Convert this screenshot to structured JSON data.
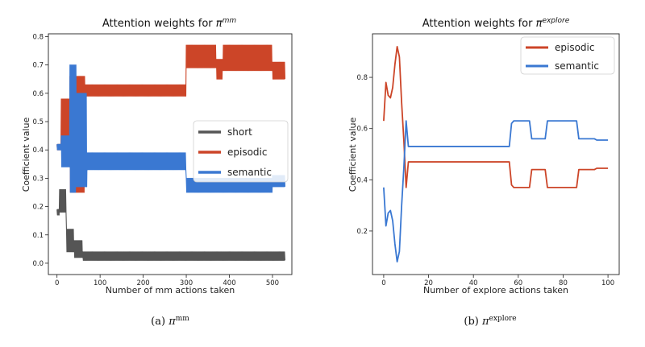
{
  "charts": [
    {
      "id": "a",
      "title_prefix": "Attention weights for ",
      "title_sym": "π",
      "title_sup": "mm",
      "xlabel": "Number of mm actions taken",
      "ylabel": "Coefficient value",
      "caption_prefix": "(a) ",
      "caption_sym": "π",
      "caption_sup": "mm"
    },
    {
      "id": "b",
      "title_prefix": "Attention weights for ",
      "title_sym": "π",
      "title_sup": "explore",
      "xlabel": "Number of explore actions taken",
      "ylabel": "Coefficient value",
      "caption_prefix": "(b) ",
      "caption_sym": "π",
      "caption_sup": "explore"
    }
  ],
  "chart_data": [
    {
      "type": "line",
      "xlim": [
        -20,
        545
      ],
      "ylim": [
        -0.04,
        0.81
      ],
      "xticks": [
        0,
        100,
        200,
        300,
        400,
        500
      ],
      "yticks": [
        0.0,
        0.1,
        0.2,
        0.3,
        0.4,
        0.5,
        0.6,
        0.7,
        0.8
      ],
      "ytick_labels": [
        "0.0",
        "0.1",
        "0.2",
        "0.3",
        "0.4",
        "0.5",
        "0.6",
        "0.7",
        "0.8"
      ],
      "legend_position": "center-right",
      "series": [
        {
          "name": "short",
          "color": "#555555",
          "segments": [
            {
              "x0": 0,
              "x1": 6,
              "lo": 0.17,
              "hi": 0.19
            },
            {
              "x0": 6,
              "x1": 22,
              "lo": 0.18,
              "hi": 0.26
            },
            {
              "x0": 22,
              "x1": 40,
              "lo": 0.04,
              "hi": 0.12
            },
            {
              "x0": 40,
              "x1": 60,
              "lo": 0.02,
              "hi": 0.08
            },
            {
              "x0": 60,
              "x1": 530,
              "lo": 0.01,
              "hi": 0.04
            }
          ]
        },
        {
          "name": "episodic",
          "color": "#cc4528",
          "segments": [
            {
              "x0": 0,
              "x1": 10,
              "lo": 0.4,
              "hi": 0.42
            },
            {
              "x0": 10,
              "x1": 30,
              "lo": 0.4,
              "hi": 0.58
            },
            {
              "x0": 30,
              "x1": 65,
              "lo": 0.25,
              "hi": 0.66
            },
            {
              "x0": 65,
              "x1": 300,
              "lo": 0.59,
              "hi": 0.63
            },
            {
              "x0": 300,
              "x1": 370,
              "lo": 0.69,
              "hi": 0.77
            },
            {
              "x0": 370,
              "x1": 385,
              "lo": 0.65,
              "hi": 0.72
            },
            {
              "x0": 385,
              "x1": 500,
              "lo": 0.68,
              "hi": 0.77
            },
            {
              "x0": 500,
              "x1": 530,
              "lo": 0.65,
              "hi": 0.71
            }
          ]
        },
        {
          "name": "semantic",
          "color": "#3a78d2",
          "segments": [
            {
              "x0": 0,
              "x1": 10,
              "lo": 0.4,
              "hi": 0.42
            },
            {
              "x0": 10,
              "x1": 30,
              "lo": 0.34,
              "hi": 0.45
            },
            {
              "x0": 30,
              "x1": 45,
              "lo": 0.25,
              "hi": 0.7
            },
            {
              "x0": 45,
              "x1": 70,
              "lo": 0.27,
              "hi": 0.6
            },
            {
              "x0": 70,
              "x1": 300,
              "lo": 0.33,
              "hi": 0.39
            },
            {
              "x0": 300,
              "x1": 500,
              "lo": 0.25,
              "hi": 0.3
            },
            {
              "x0": 500,
              "x1": 530,
              "lo": 0.27,
              "hi": 0.31
            }
          ]
        }
      ]
    },
    {
      "type": "line",
      "xlim": [
        -5,
        105
      ],
      "ylim": [
        0.03,
        0.97
      ],
      "xticks": [
        0,
        20,
        40,
        60,
        80,
        100
      ],
      "yticks": [
        0.2,
        0.4,
        0.6,
        0.8
      ],
      "ytick_labels": [
        "0.2",
        "0.4",
        "0.6",
        "0.8"
      ],
      "legend_position": "top-right",
      "series": [
        {
          "name": "episodic",
          "color": "#cc4528",
          "x": [
            0,
            1,
            2,
            3,
            4,
            5,
            6,
            7,
            8,
            9,
            10,
            11,
            56,
            57,
            58,
            65,
            66,
            71,
            72,
            73,
            86,
            87,
            94,
            95,
            100
          ],
          "y": [
            0.63,
            0.78,
            0.73,
            0.72,
            0.76,
            0.85,
            0.92,
            0.88,
            0.7,
            0.55,
            0.37,
            0.47,
            0.47,
            0.38,
            0.37,
            0.37,
            0.44,
            0.44,
            0.44,
            0.37,
            0.37,
            0.44,
            0.44,
            0.445,
            0.445
          ]
        },
        {
          "name": "semantic",
          "color": "#3a78d2",
          "x": [
            0,
            1,
            2,
            3,
            4,
            5,
            6,
            7,
            8,
            9,
            10,
            11,
            56,
            57,
            58,
            65,
            66,
            71,
            72,
            73,
            86,
            87,
            94,
            95,
            100
          ],
          "y": [
            0.37,
            0.22,
            0.27,
            0.28,
            0.24,
            0.15,
            0.08,
            0.12,
            0.3,
            0.45,
            0.63,
            0.53,
            0.53,
            0.62,
            0.63,
            0.63,
            0.56,
            0.56,
            0.56,
            0.63,
            0.63,
            0.56,
            0.56,
            0.555,
            0.555
          ]
        }
      ]
    }
  ]
}
